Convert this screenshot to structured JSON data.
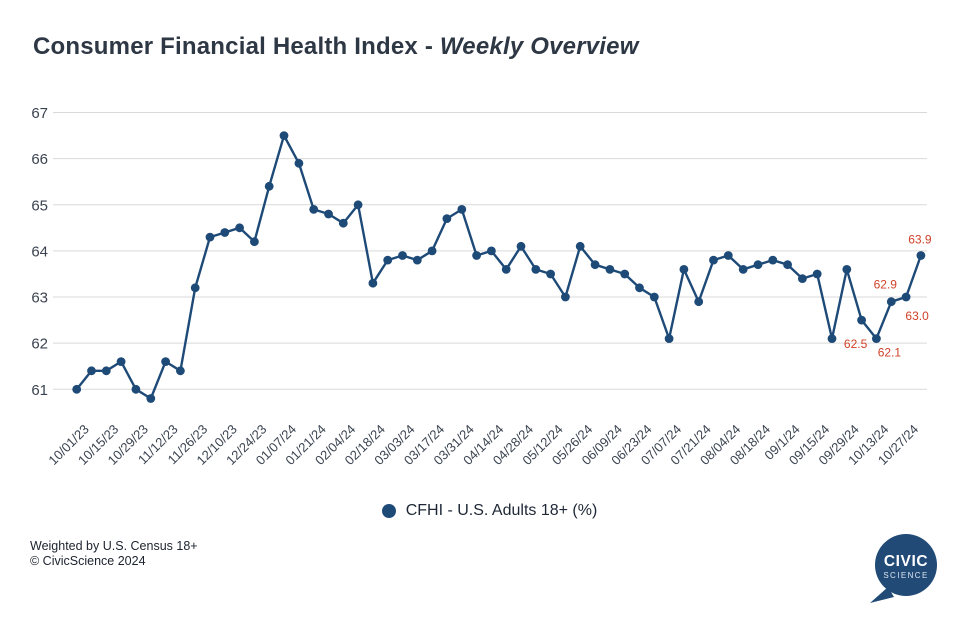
{
  "title": {
    "main": "Consumer Financial Health Index - ",
    "italic": "Weekly Overview"
  },
  "chart_data": {
    "type": "line",
    "title": "Consumer Financial Health Index - Weekly Overview",
    "xlabel": "",
    "ylabel": "",
    "ylim": [
      61,
      67
    ],
    "yticks": [
      61,
      62,
      63,
      64,
      65,
      66,
      67
    ],
    "grid": "horizontal",
    "legend_position": "bottom-center",
    "x": [
      "10/01/23",
      "10/08/23",
      "10/15/23",
      "10/22/23",
      "10/29/23",
      "11/05/23",
      "11/12/23",
      "11/19/23",
      "11/26/23",
      "12/03/23",
      "12/10/23",
      "12/17/23",
      "12/24/23",
      "12/31/23",
      "01/07/24",
      "01/14/24",
      "01/21/24",
      "01/28/24",
      "02/04/24",
      "02/11/24",
      "02/18/24",
      "02/25/24",
      "03/03/24",
      "03/10/24",
      "03/17/24",
      "03/24/24",
      "03/31/24",
      "04/07/24",
      "04/14/24",
      "04/21/24",
      "04/28/24",
      "05/05/24",
      "05/12/24",
      "05/19/24",
      "05/26/24",
      "06/02/24",
      "06/09/24",
      "06/16/24",
      "06/23/24",
      "06/30/24",
      "07/07/24",
      "07/14/24",
      "07/21/24",
      "07/28/24",
      "08/04/24",
      "08/11/24",
      "08/18/24",
      "08/25/24",
      "09/01/24",
      "09/08/24",
      "09/15/24",
      "09/22/24",
      "09/29/24",
      "10/06/24",
      "10/13/24",
      "10/20/24",
      "10/27/24",
      "11/03/24"
    ],
    "series": [
      {
        "name": "CFHI - U.S. Adults 18+ (%)",
        "values": [
          61.0,
          61.4,
          61.4,
          61.6,
          61.0,
          60.8,
          61.6,
          61.4,
          63.2,
          64.3,
          64.4,
          64.5,
          64.2,
          65.4,
          66.5,
          65.9,
          64.9,
          64.8,
          64.6,
          65.0,
          63.3,
          63.8,
          63.9,
          63.8,
          64.0,
          64.7,
          64.9,
          63.9,
          64.0,
          63.6,
          64.1,
          63.6,
          63.5,
          63.0,
          64.1,
          63.7,
          63.6,
          63.5,
          63.2,
          63.0,
          62.1,
          63.6,
          62.9,
          63.8,
          63.9,
          63.6,
          63.7,
          63.8,
          63.7,
          63.4,
          63.5,
          62.1,
          63.6,
          62.5,
          62.1,
          62.9,
          63.0,
          63.9
        ]
      }
    ],
    "x_tick_labels": [
      "10/01/23",
      "10/15/23",
      "10/29/23",
      "11/12/23",
      "11/26/23",
      "12/10/23",
      "12/24/23",
      "01/07/24",
      "01/21/24",
      "02/04/24",
      "02/18/24",
      "03/03/24",
      "03/17/24",
      "03/31/24",
      "04/14/24",
      "04/28/24",
      "05/12/24",
      "05/26/24",
      "06/09/24",
      "06/23/24",
      "07/07/24",
      "07/21/24",
      "08/04/24",
      "08/18/24",
      "09/1/24",
      "09/15/24",
      "09/29/24",
      "10/13/24",
      "10/27/24"
    ],
    "annotations": [
      {
        "index": 53,
        "text": "62.5"
      },
      {
        "index": 54,
        "text": "62.1"
      },
      {
        "index": 55,
        "text": "62.9"
      },
      {
        "index": 56,
        "text": "63.0"
      },
      {
        "index": 57,
        "text": "63.9"
      }
    ],
    "colors": {
      "line": "#1e4a78",
      "marker": "#1e4a78",
      "annotation": "#d04129",
      "gridline": "#d9d9d9",
      "axis_text": "#3a4350",
      "title_text": "#2e3744"
    }
  },
  "legend": {
    "label": "CFHI - U.S. Adults 18+ (%)"
  },
  "footer": {
    "line1": "Weighted by U.S. Census 18+",
    "line2": "© CivicScience 2024"
  },
  "logo": {
    "line1": "CIVIC",
    "line2": "SCIENCE",
    "color": "#214a77"
  }
}
